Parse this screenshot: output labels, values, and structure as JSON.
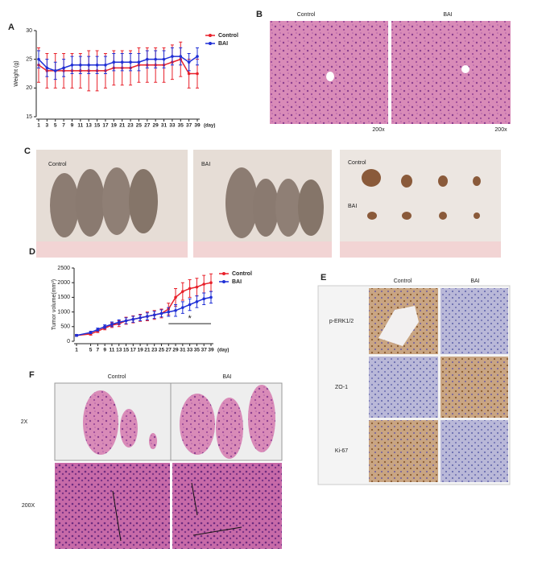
{
  "panel_labels": [
    "A",
    "B",
    "C",
    "D",
    "E",
    "F"
  ],
  "chart_data": [
    {
      "type": "line",
      "ylabel": "Weight (g)",
      "xlabel": "(day)",
      "x": [
        1,
        3,
        5,
        7,
        9,
        11,
        13,
        15,
        17,
        19,
        21,
        23,
        25,
        27,
        29,
        31,
        33,
        35,
        37,
        39
      ],
      "xlim": [
        1,
        39
      ],
      "xticks": [
        1,
        3,
        5,
        7,
        9,
        11,
        13,
        15,
        17,
        19,
        21,
        23,
        25,
        27,
        29,
        31,
        33,
        35,
        37,
        39
      ],
      "ylim": [
        15,
        30
      ],
      "yticks": [
        15,
        20,
        25,
        30
      ],
      "legend": "upper right",
      "series": [
        {
          "name": "Control",
          "color": "#e8202a",
          "values": [
            24,
            23,
            23,
            23,
            23,
            23,
            23,
            23,
            23,
            23.5,
            23.5,
            23.5,
            24,
            24,
            24,
            24,
            24.5,
            25,
            22.5,
            22.5
          ],
          "errors": [
            3,
            3,
            3,
            3,
            3,
            3,
            3.5,
            3.5,
            3,
            3,
            3,
            3,
            3,
            3,
            3,
            3,
            3,
            3,
            2.5,
            2.5
          ]
        },
        {
          "name": "BAI",
          "color": "#1f2fd6",
          "values": [
            25,
            23.5,
            23,
            23.5,
            24,
            24,
            24,
            24,
            24,
            24.5,
            24.5,
            24.5,
            24.5,
            25,
            25,
            25,
            25.5,
            25.5,
            24.5,
            25.5
          ],
          "errors": [
            1.5,
            1.5,
            1.5,
            1.5,
            1.5,
            1.5,
            1.5,
            1.5,
            1.5,
            1.5,
            1.5,
            1.5,
            1.5,
            1.5,
            1.5,
            1.5,
            1.5,
            1.5,
            1.5,
            1.5
          ]
        }
      ]
    },
    {
      "type": "line",
      "ylabel": "Tumor volume(mm³)",
      "xlabel": "(day)",
      "x": [
        1,
        5,
        7,
        9,
        11,
        13,
        15,
        17,
        19,
        21,
        23,
        25,
        27,
        29,
        31,
        33,
        35,
        37,
        39
      ],
      "xlim": [
        1,
        39
      ],
      "xticks": [
        1,
        5,
        7,
        9,
        11,
        13,
        15,
        17,
        19,
        21,
        23,
        25,
        27,
        29,
        31,
        33,
        35,
        37,
        39
      ],
      "ylim": [
        0,
        2500
      ],
      "yticks": [
        0,
        500,
        1000,
        1500,
        2000,
        2500
      ],
      "legend": "upper right",
      "annotation": {
        "text": "*",
        "x_from": 27,
        "x_to": 39,
        "y": 600
      },
      "series": [
        {
          "name": "Control",
          "color": "#e8202a",
          "values": [
            200,
            250,
            350,
            450,
            550,
            600,
            700,
            750,
            800,
            850,
            900,
            950,
            1100,
            1500,
            1700,
            1800,
            1850,
            1950,
            2000
          ],
          "errors": [
            30,
            40,
            50,
            60,
            80,
            100,
            120,
            120,
            120,
            150,
            150,
            150,
            200,
            300,
            300,
            300,
            300,
            300,
            300
          ]
        },
        {
          "name": "BAI",
          "color": "#1f2fd6",
          "values": [
            200,
            300,
            400,
            500,
            580,
            650,
            700,
            750,
            800,
            850,
            900,
            950,
            1000,
            1050,
            1150,
            1250,
            1350,
            1450,
            1500
          ],
          "errors": [
            30,
            40,
            50,
            60,
            80,
            80,
            100,
            100,
            100,
            120,
            120,
            120,
            150,
            200,
            200,
            200,
            200,
            200,
            200
          ]
        }
      ]
    }
  ],
  "panel_b": {
    "columns": [
      "Control",
      "BAI"
    ],
    "magnification": [
      "200x",
      "200x"
    ]
  },
  "panel_c": {
    "labels": [
      "Control",
      "BAI",
      "Control",
      "BAI"
    ]
  },
  "panel_e": {
    "columns": [
      "Control",
      "BAI"
    ],
    "rows": [
      "p-ERK1/2",
      "ZO-1",
      "Ki-67"
    ]
  },
  "panel_f": {
    "columns": [
      "Control",
      "BAI"
    ],
    "rows": [
      "2X",
      "200X"
    ]
  }
}
